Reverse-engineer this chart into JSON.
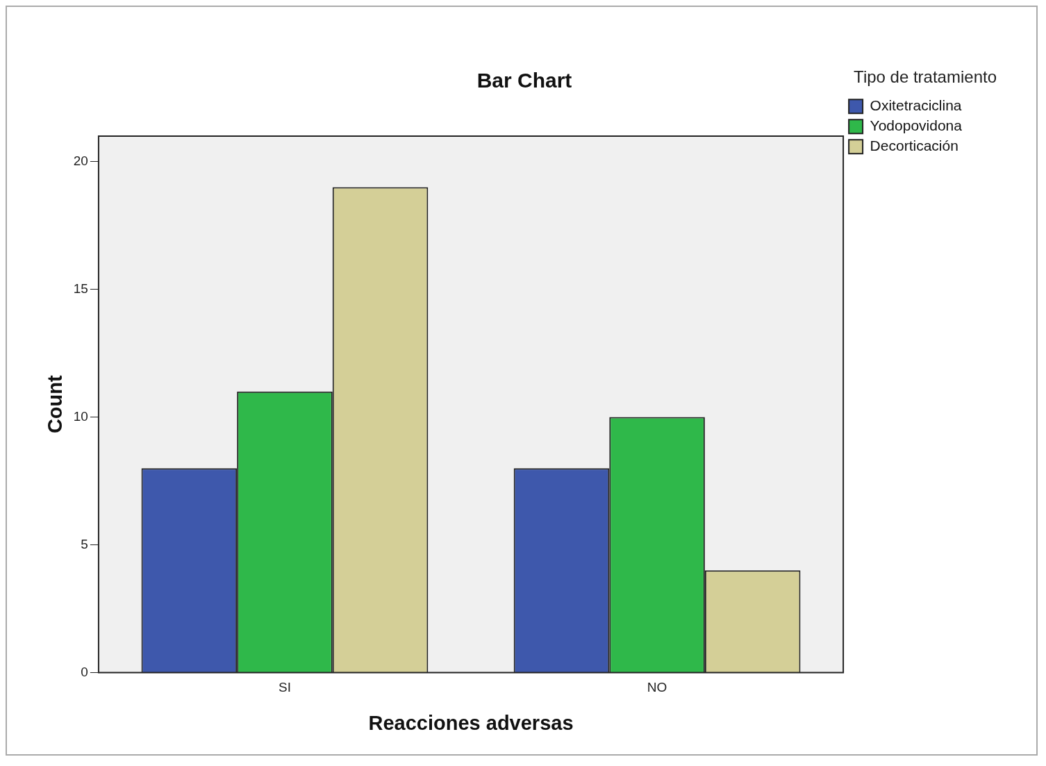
{
  "chart_data": {
    "type": "bar",
    "title": "Bar Chart",
    "xlabel": "Reacciones adversas",
    "ylabel": "Count",
    "legend_title": "Tipo de tratamiento",
    "categories": [
      "SI",
      "NO"
    ],
    "series": [
      {
        "name": "Oxitetraciclina",
        "color": "#3e58ac",
        "values": [
          8,
          8
        ]
      },
      {
        "name": "Yodopovidona",
        "color": "#2fb84a",
        "values": [
          11,
          10
        ]
      },
      {
        "name": "Decorticación",
        "color": "#d4cf97",
        "values": [
          19,
          4
        ]
      }
    ],
    "ylim": [
      0,
      21
    ],
    "yticks": [
      0,
      5,
      10,
      15,
      20
    ],
    "grid": false,
    "legend": "top right"
  }
}
